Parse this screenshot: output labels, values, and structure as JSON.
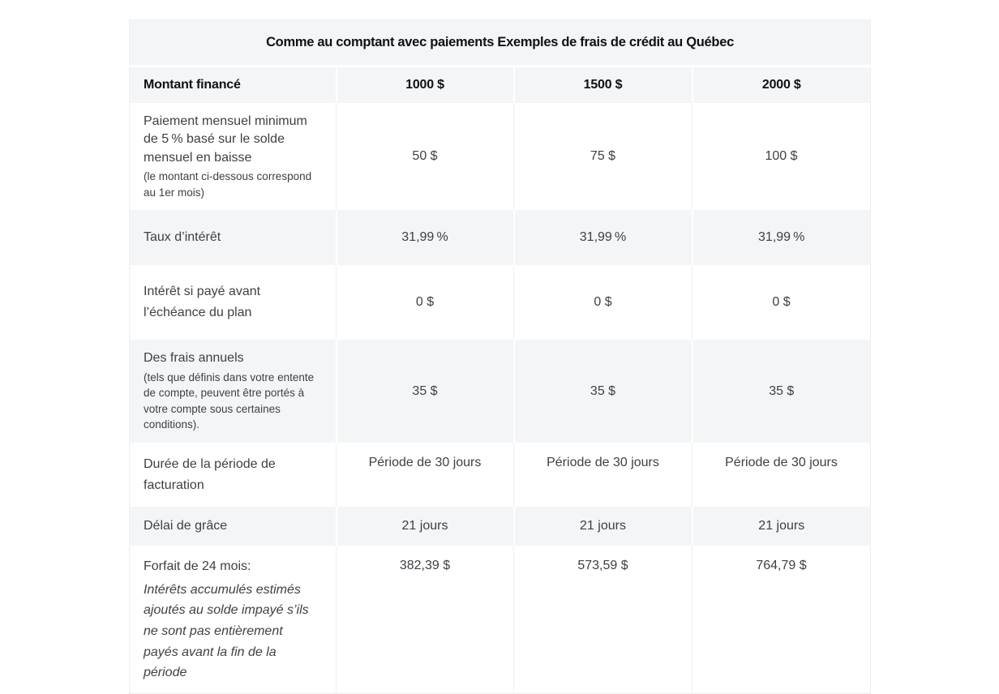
{
  "table": {
    "title": "Comme au comptant avec paiements Exemples de frais de crédit au Québec",
    "header": {
      "label": "Montant financé",
      "columns": [
        "1000 $",
        "1500 $",
        "2000 $"
      ]
    },
    "rows": [
      {
        "label": "Paiement mensuel minimum de 5 % basé sur le solde mensuel en baisse",
        "note": "(le montant ci-dessous correspond au 1er mois)",
        "values": [
          "50 $",
          "75 $",
          "100 $"
        ]
      },
      {
        "label": "Taux d’intérêt",
        "values": [
          "31,99 %",
          "31,99 %",
          "31,99 %"
        ]
      },
      {
        "label": "Intérêt si payé avant l’échéance du plan",
        "values": [
          "0 $",
          "0 $",
          "0 $"
        ]
      },
      {
        "label": "Des frais annuels",
        "note": "(tels que définis dans votre entente de compte, peuvent être portés à votre compte sous certaines conditions).",
        "values": [
          "35 $",
          "35 $",
          "35 $"
        ]
      },
      {
        "label": "Durée de la période de facturation",
        "values": [
          "Période de 30 jours",
          "Période de 30 jours",
          "Période de 30 jours"
        ]
      },
      {
        "label": "Délai de grâce",
        "values": [
          "21 jours",
          "21 jours",
          "21 jours"
        ]
      },
      {
        "label": "Forfait de 24 mois:",
        "note_italic": "Intérêts accumulés estimés ajoutés au solde impayé s’ils ne sont pas entièrement payés avant la fin de la période",
        "values": [
          "382,39 $",
          "573,59 $",
          "764,79 $"
        ]
      }
    ],
    "colors": {
      "row_shade": "#f4f5f7",
      "text_body": "#3d4046",
      "text_heading": "#101114"
    }
  }
}
